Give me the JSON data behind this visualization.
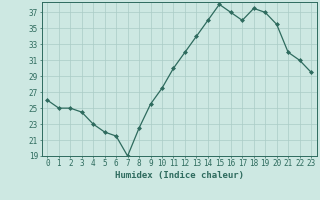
{
  "x": [
    0,
    1,
    2,
    3,
    4,
    5,
    6,
    7,
    8,
    9,
    10,
    11,
    12,
    13,
    14,
    15,
    16,
    17,
    18,
    19,
    20,
    21,
    22,
    23
  ],
  "y": [
    26,
    25,
    25,
    24.5,
    23,
    22,
    21.5,
    19,
    22.5,
    25.5,
    27.5,
    30,
    32,
    34,
    36,
    38,
    37,
    36,
    37.5,
    37,
    35.5,
    32,
    31,
    29.5
  ],
  "line_color": "#2e6b5e",
  "marker": "D",
  "marker_size": 2.0,
  "bg_color": "#cde8e2",
  "grid_color": "#aaccc6",
  "xlabel": "Humidex (Indice chaleur)",
  "ylim_min": 19,
  "ylim_max": 38,
  "yticks": [
    19,
    21,
    23,
    25,
    27,
    29,
    31,
    33,
    35,
    37
  ],
  "xtick_labels": [
    "0",
    "1",
    "2",
    "3",
    "4",
    "5",
    "6",
    "7",
    "8",
    "9",
    "10",
    "11",
    "12",
    "13",
    "14",
    "15",
    "16",
    "17",
    "18",
    "19",
    "20",
    "21",
    "22",
    "23"
  ],
  "tick_color": "#2e6b5e",
  "xlabel_fontsize": 6.5,
  "tick_fontsize": 5.5,
  "linewidth": 0.9
}
